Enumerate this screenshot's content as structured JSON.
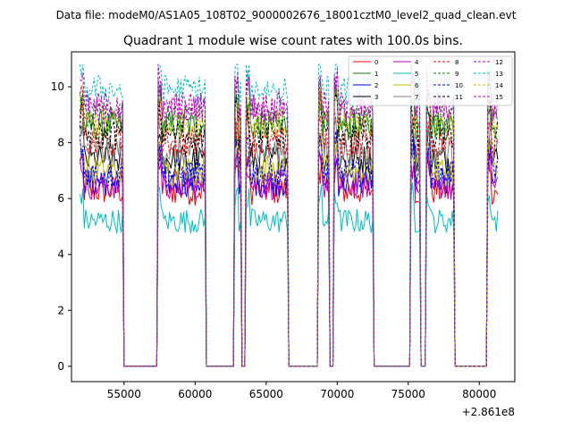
{
  "suptitle": "Data file: modeM0/AS1A05_108T02_9000002676_18001cztM0_level2_quad_clean.evt",
  "chart_data": {
    "type": "line",
    "title": "Quadrant 1 module wise count rates with 100.0s bins.",
    "xlabel": "",
    "ylabel": "",
    "x_offset_label": "+2.861e8",
    "xlim": [
      51300,
      82500
    ],
    "ylim": [
      -0.55,
      11.25
    ],
    "xticks": [
      55000,
      60000,
      65000,
      70000,
      75000,
      80000
    ],
    "xtick_labels": [
      "55000",
      "60000",
      "65000",
      "70000",
      "75000",
      "80000"
    ],
    "yticks": [
      0,
      2,
      4,
      6,
      8,
      10
    ],
    "ytick_labels": [
      "0",
      "2",
      "4",
      "6",
      "8",
      "10"
    ],
    "grid": false,
    "legend_position": "top-right",
    "legend_columns": 4,
    "on_segments": [
      [
        51900,
        54900
      ],
      [
        57400,
        60700
      ],
      [
        62800,
        63200
      ],
      [
        63600,
        66500
      ],
      [
        68700,
        69400
      ],
      [
        69800,
        72500
      ],
      [
        75200,
        75800
      ],
      [
        76300,
        78200
      ],
      [
        80600,
        81300
      ]
    ],
    "series": [
      {
        "name": "0",
        "color": "#ff0000",
        "dash": "solid",
        "base": 6.3
      },
      {
        "name": "1",
        "color": "#008000",
        "dash": "solid",
        "base": 8.6
      },
      {
        "name": "2",
        "color": "#0000ff",
        "dash": "solid",
        "base": 6.6
      },
      {
        "name": "3",
        "color": "#000000",
        "dash": "solid",
        "base": 7.4
      },
      {
        "name": "4",
        "color": "#bf00bf",
        "dash": "solid",
        "base": 6.5
      },
      {
        "name": "5",
        "color": "#00bfbf",
        "dash": "solid",
        "base": 5.2
      },
      {
        "name": "6",
        "color": "#bfbf00",
        "dash": "solid",
        "base": 7.0
      },
      {
        "name": "7",
        "color": "#808080",
        "dash": "solid",
        "base": 7.7
      },
      {
        "name": "8",
        "color": "#ff0000",
        "dash": "dashed",
        "base": 8.0
      },
      {
        "name": "9",
        "color": "#008000",
        "dash": "dashed",
        "base": 8.9
      },
      {
        "name": "10",
        "color": "#0000ff",
        "dash": "dashed",
        "base": 6.9
      },
      {
        "name": "11",
        "color": "#000000",
        "dash": "dashed",
        "base": 8.3
      },
      {
        "name": "12",
        "color": "#bf00bf",
        "dash": "dashed",
        "base": 9.1
      },
      {
        "name": "13",
        "color": "#00bfbf",
        "dash": "dashed",
        "base": 9.9
      },
      {
        "name": "14",
        "color": "#bfbf00",
        "dash": "dashed",
        "base": 8.7
      },
      {
        "name": "15",
        "color": "#bf00bf",
        "dash": "dashed",
        "base": 9.3
      }
    ]
  }
}
